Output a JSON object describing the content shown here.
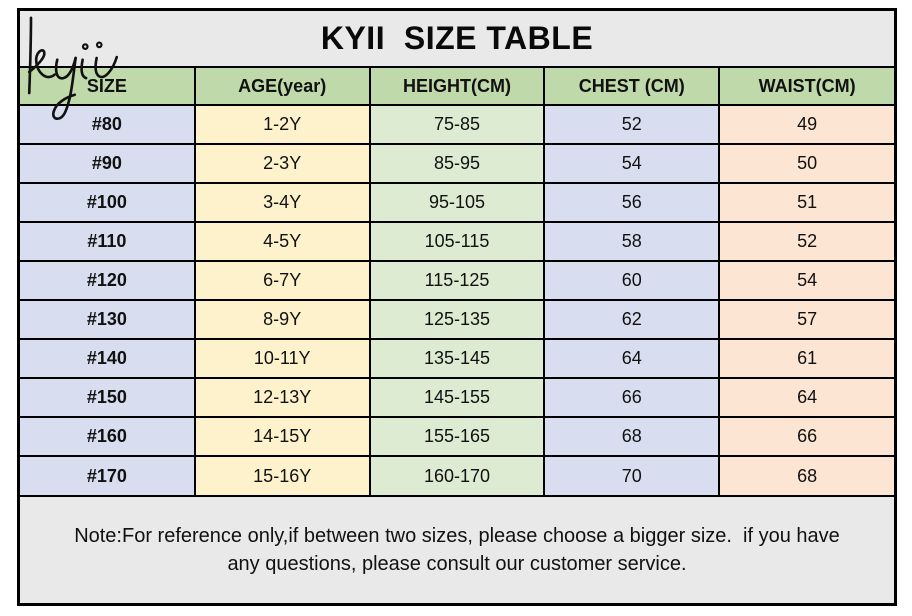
{
  "brand": {
    "logo_text": "kyii"
  },
  "title": "KYII  SIZE TABLE",
  "table": {
    "columns": [
      {
        "key": "size",
        "label": "SIZE"
      },
      {
        "key": "age",
        "label": "AGE(year)"
      },
      {
        "key": "height",
        "label": "HEIGHT(CM)"
      },
      {
        "key": "chest",
        "label": "CHEST (CM)"
      },
      {
        "key": "waist",
        "label": "WAIST(CM)"
      }
    ],
    "rows": [
      {
        "size": "#80",
        "age": "1-2Y",
        "height": "75-85",
        "chest": "52",
        "waist": "49"
      },
      {
        "size": "#90",
        "age": "2-3Y",
        "height": "85-95",
        "chest": "54",
        "waist": "50"
      },
      {
        "size": "#100",
        "age": "3-4Y",
        "height": "95-105",
        "chest": "56",
        "waist": "51"
      },
      {
        "size": "#110",
        "age": "4-5Y",
        "height": "105-115",
        "chest": "58",
        "waist": "52"
      },
      {
        "size": "#120",
        "age": "6-7Y",
        "height": "115-125",
        "chest": "60",
        "waist": "54"
      },
      {
        "size": "#130",
        "age": "8-9Y",
        "height": "125-135",
        "chest": "62",
        "waist": "57"
      },
      {
        "size": "#140",
        "age": "10-11Y",
        "height": "135-145",
        "chest": "64",
        "waist": "61"
      },
      {
        "size": "#150",
        "age": "12-13Y",
        "height": "145-155",
        "chest": "66",
        "waist": "64"
      },
      {
        "size": "#160",
        "age": "14-15Y",
        "height": "155-165",
        "chest": "68",
        "waist": "66"
      },
      {
        "size": "#170",
        "age": "15-16Y",
        "height": "160-170",
        "chest": "70",
        "waist": "68"
      }
    ]
  },
  "note": {
    "line1": "Note:For reference only,if between two sizes, please choose a bigger size.  if you have",
    "line2": "any questions, please consult our customer service."
  },
  "colors": {
    "band_gray": "#e9e9e9",
    "header_green": "#bfd9ab",
    "col_blue": "#d8def0",
    "col_yellow": "#fdf2cc",
    "col_green": "#ddebd2",
    "col_peach": "#fce5d3",
    "border": "#000000",
    "text": "#111111"
  }
}
